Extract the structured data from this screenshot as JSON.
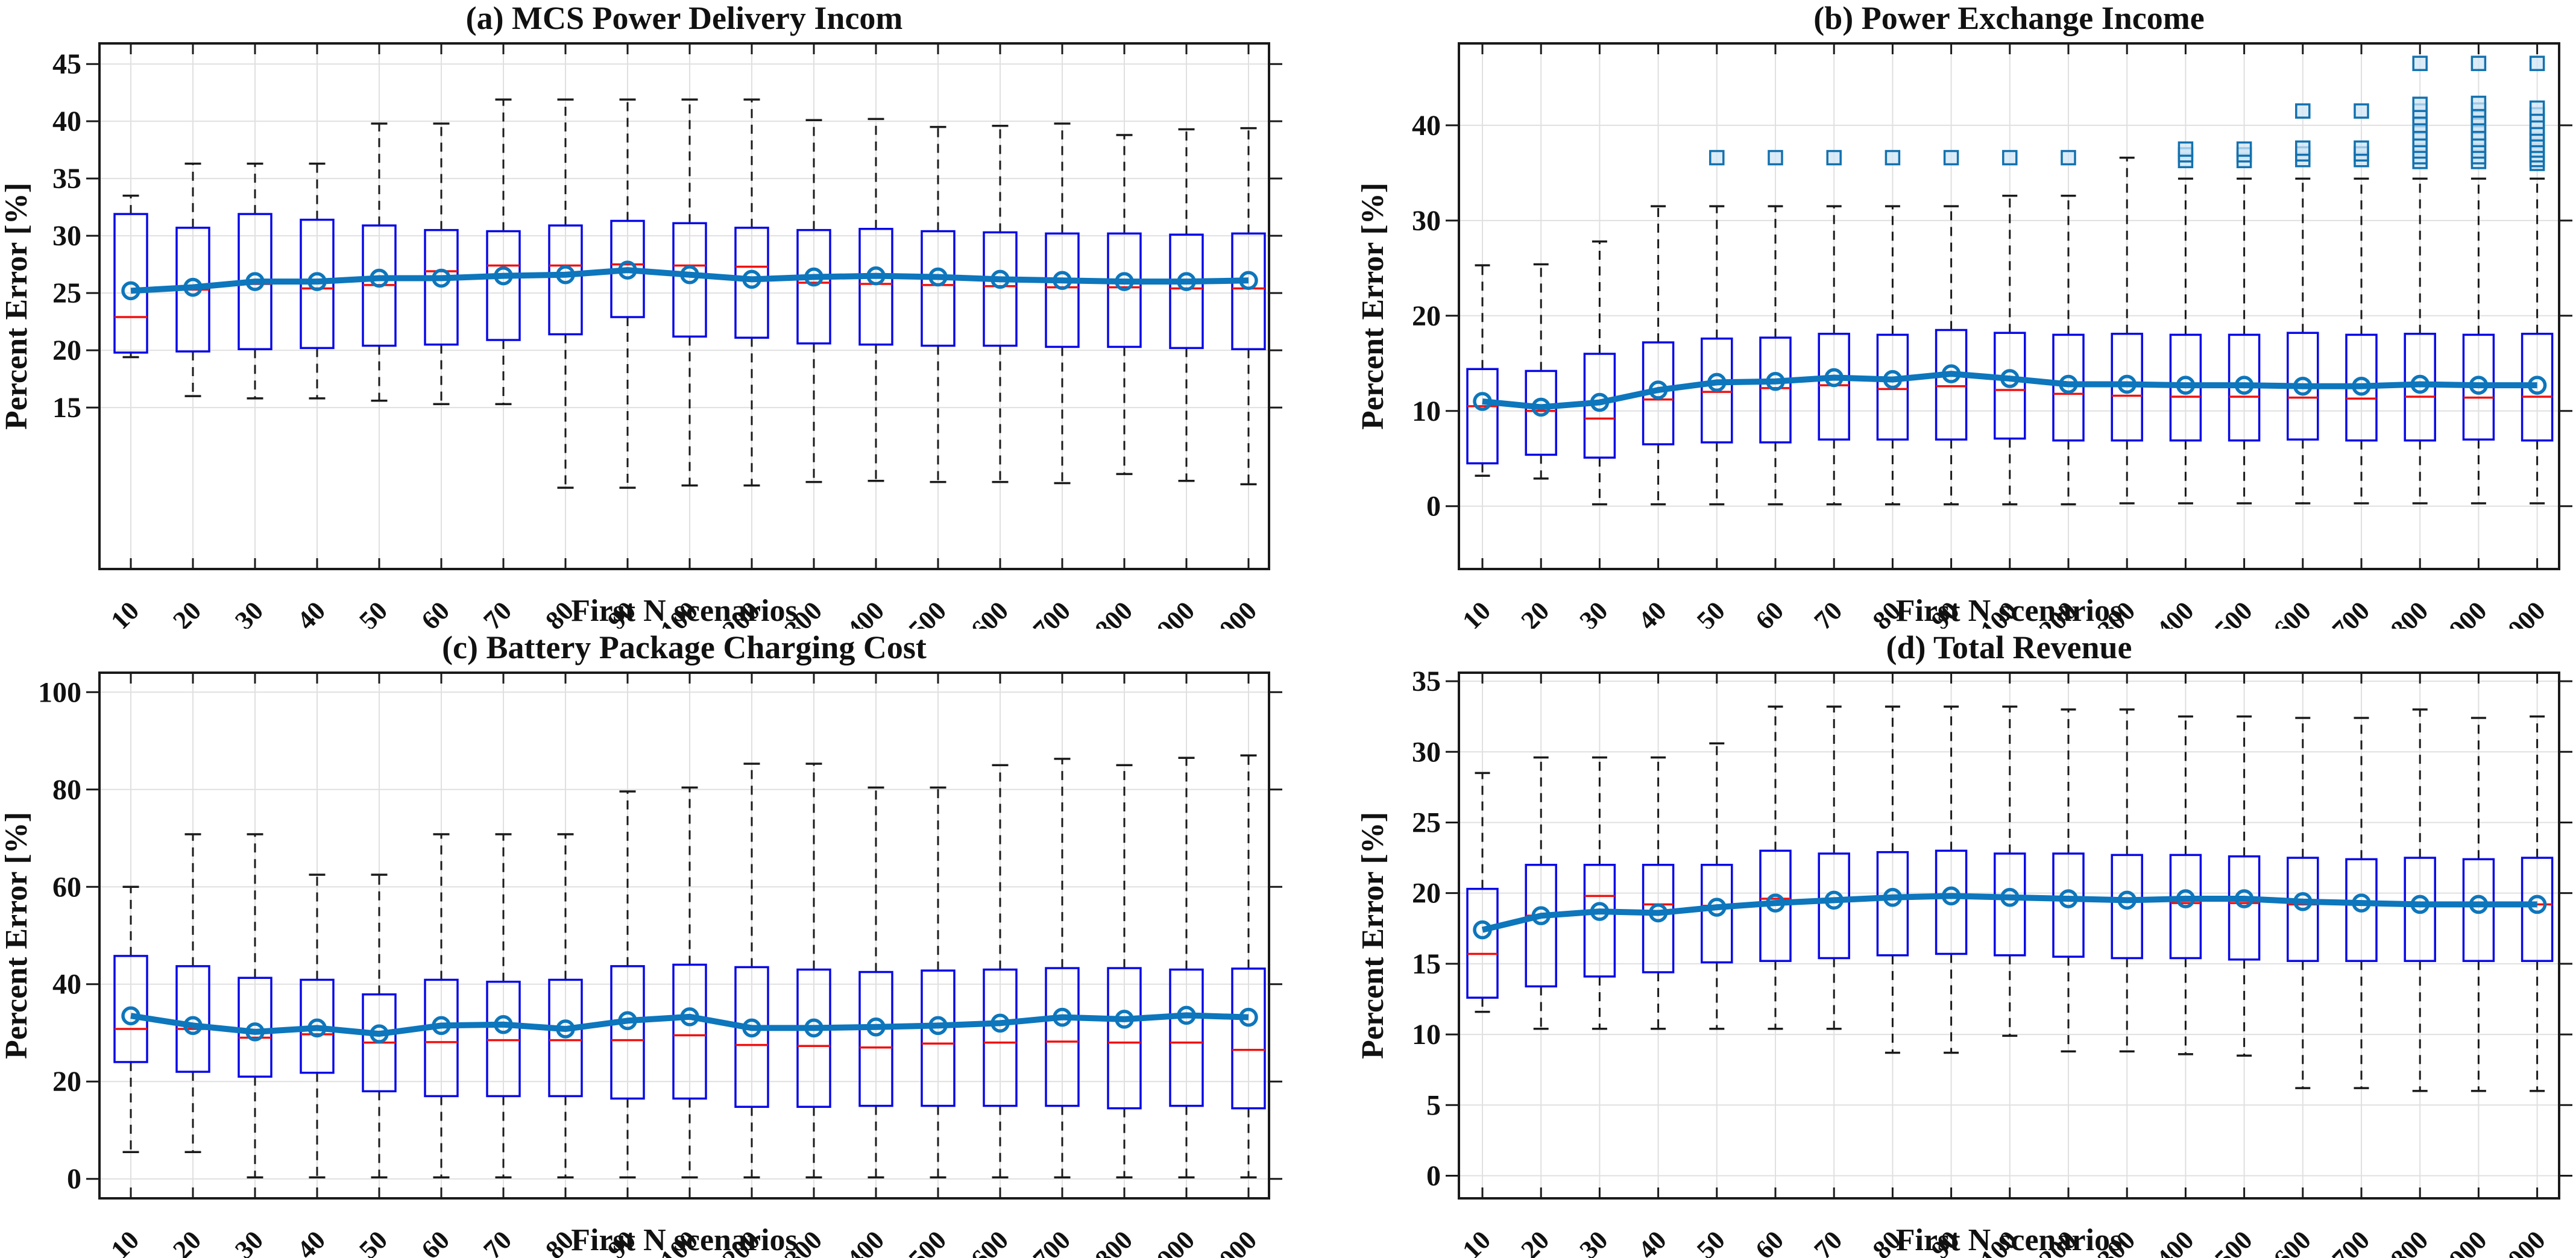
{
  "figure": {
    "xlabel": "First N scenarios",
    "ylabel": "Percent Error [%]",
    "categories": [
      "10",
      "20",
      "30",
      "40",
      "50",
      "60",
      "70",
      "80",
      "90",
      "100",
      "200",
      "300",
      "400",
      "500",
      "600",
      "700",
      "800",
      "900",
      "1000"
    ]
  },
  "colors": {
    "box_edge": "#0808e8",
    "median": "#f01010",
    "whisker": "#1a1a1a",
    "cap": "#1a1a1a",
    "mean_line": "#0d76bc",
    "mean_marker_edge": "#0d76bc",
    "outlier_edge": "#1371ae",
    "outlier_fill": "#cfe6f5",
    "grid": "#e0e0e0",
    "axis": "#1a1a1a",
    "background": "#ffffff",
    "text": "#111111"
  },
  "chart_data": [
    {
      "type": "boxplot",
      "panel": "a",
      "title": "(a) MCS Power Delivery Incom",
      "xlabel": "First N scenarios",
      "ylabel": "Percent Error [%]",
      "categories": [
        "10",
        "20",
        "30",
        "40",
        "50",
        "60",
        "70",
        "80",
        "90",
        "100",
        "200",
        "300",
        "400",
        "500",
        "600",
        "700",
        "800",
        "900",
        "1000"
      ],
      "ylim": [
        0.9,
        46.8
      ],
      "yticks": [
        15,
        20,
        25,
        30,
        35,
        40,
        45
      ],
      "grid": true,
      "boxes": {
        "lo": [
          19.4,
          16.0,
          15.8,
          15.8,
          15.6,
          15.3,
          15.3,
          8.0,
          8.0,
          8.2,
          8.2,
          8.5,
          8.6,
          8.5,
          8.5,
          8.4,
          9.2,
          8.6,
          8.3
        ],
        "q1": [
          19.8,
          19.9,
          20.1,
          20.2,
          20.4,
          20.5,
          20.9,
          21.4,
          22.9,
          21.2,
          21.1,
          20.6,
          20.5,
          20.4,
          20.4,
          20.3,
          20.3,
          20.2,
          20.1
        ],
        "med": [
          22.9,
          25.3,
          25.8,
          25.4,
          25.7,
          26.9,
          27.4,
          27.4,
          27.5,
          27.4,
          27.3,
          25.9,
          25.8,
          25.7,
          25.6,
          25.5,
          25.5,
          25.4,
          25.4
        ],
        "q3": [
          31.9,
          30.7,
          31.9,
          31.4,
          30.9,
          30.5,
          30.4,
          30.9,
          31.3,
          31.1,
          30.7,
          30.5,
          30.6,
          30.4,
          30.3,
          30.2,
          30.2,
          30.1,
          30.2
        ],
        "hi": [
          33.5,
          36.3,
          36.3,
          36.3,
          39.8,
          39.8,
          41.9,
          41.9,
          41.9,
          41.9,
          41.9,
          40.1,
          40.2,
          39.5,
          39.6,
          39.8,
          38.8,
          39.3,
          39.4
        ],
        "mean": [
          25.2,
          25.5,
          26.0,
          26.0,
          26.3,
          26.3,
          26.5,
          26.6,
          27.0,
          26.6,
          26.2,
          26.4,
          26.5,
          26.4,
          26.2,
          26.1,
          26.0,
          26.0,
          26.1
        ]
      },
      "outliers": {}
    },
    {
      "type": "boxplot",
      "panel": "b",
      "title": "(b) Power Exchange Income",
      "xlabel": "First N scenarios",
      "ylabel": "Percent Error [%]",
      "categories": [
        "10",
        "20",
        "30",
        "40",
        "50",
        "60",
        "70",
        "80",
        "90",
        "100",
        "200",
        "300",
        "400",
        "500",
        "600",
        "700",
        "800",
        "900",
        "1000"
      ],
      "ylim": [
        -6.6,
        48.6
      ],
      "yticks": [
        0,
        10,
        20,
        30,
        40
      ],
      "grid": true,
      "boxes": {
        "lo": [
          3.2,
          2.9,
          0.2,
          0.2,
          0.2,
          0.2,
          0.2,
          0.2,
          0.2,
          0.2,
          0.2,
          0.3,
          0.3,
          0.3,
          0.3,
          0.3,
          0.3,
          0.3,
          0.3
        ],
        "q1": [
          4.5,
          5.4,
          5.1,
          6.5,
          6.7,
          6.7,
          7.0,
          7.0,
          7.0,
          7.1,
          6.9,
          6.9,
          6.9,
          6.9,
          7.0,
          6.9,
          6.9,
          7.0,
          6.9
        ],
        "med": [
          10.5,
          10.0,
          9.2,
          11.2,
          12.0,
          12.4,
          12.7,
          12.3,
          12.6,
          12.2,
          11.8,
          11.6,
          11.5,
          11.5,
          11.4,
          11.3,
          11.5,
          11.4,
          11.5
        ],
        "q3": [
          14.4,
          14.2,
          16.0,
          17.2,
          17.6,
          17.7,
          18.1,
          18.0,
          18.5,
          18.2,
          18.0,
          18.1,
          18.0,
          18.0,
          18.2,
          18.0,
          18.1,
          18.0,
          18.1
        ],
        "hi": [
          25.3,
          25.4,
          27.8,
          31.5,
          31.5,
          31.5,
          31.5,
          31.5,
          31.5,
          32.6,
          32.6,
          36.6,
          34.4,
          34.4,
          34.4,
          34.4,
          34.4,
          34.4,
          34.4
        ],
        "mean": [
          11.0,
          10.4,
          10.9,
          12.2,
          13.0,
          13.1,
          13.5,
          13.3,
          13.9,
          13.4,
          12.8,
          12.8,
          12.7,
          12.7,
          12.6,
          12.6,
          12.8,
          12.7,
          12.7
        ]
      },
      "outliers": {
        "50": [
          36.6
        ],
        "60": [
          36.6
        ],
        "70": [
          36.6
        ],
        "80": [
          36.6
        ],
        "90": [
          36.6
        ],
        "100": [
          36.6
        ],
        "200": [
          36.6
        ],
        "400": [
          36.3,
          36.9,
          37.5
        ],
        "500": [
          36.3,
          36.9,
          37.5
        ],
        "600": [
          36.4,
          37.0,
          37.6,
          41.5
        ],
        "700": [
          36.4,
          37.0,
          37.6,
          41.5
        ],
        "800": [
          36.2,
          36.7,
          37.3,
          37.9,
          38.5,
          39.2,
          40.0,
          40.8,
          41.5,
          42.2,
          46.5
        ],
        "900": [
          36.2,
          36.7,
          37.3,
          37.9,
          38.5,
          39.2,
          40.0,
          40.8,
          41.6,
          42.3,
          46.5
        ],
        "1000": [
          36.0,
          36.4,
          36.9,
          37.4,
          37.9,
          38.5,
          39.1,
          39.7,
          40.4,
          41.1,
          41.8,
          46.5
        ]
      }
    },
    {
      "type": "boxplot",
      "panel": "c",
      "title": "(c) Battery Package Charging Cost",
      "xlabel": "First N scenarios",
      "ylabel": "Percent Error [%]",
      "categories": [
        "10",
        "20",
        "30",
        "40",
        "50",
        "60",
        "70",
        "80",
        "90",
        "100",
        "200",
        "300",
        "400",
        "500",
        "600",
        "700",
        "800",
        "900",
        "1000"
      ],
      "ylim": [
        -4.0,
        104.0
      ],
      "yticks": [
        0,
        20,
        40,
        60,
        80,
        100
      ],
      "grid": true,
      "boxes": {
        "lo": [
          5.5,
          5.5,
          0.3,
          0.3,
          0.3,
          0.3,
          0.3,
          0.3,
          0.3,
          0.3,
          0.3,
          0.3,
          0.3,
          0.3,
          0.3,
          0.3,
          0.3,
          0.3,
          0.3
        ],
        "q1": [
          24.0,
          22.0,
          21.0,
          21.8,
          18.0,
          17.0,
          17.0,
          17.0,
          16.5,
          16.5,
          14.8,
          14.8,
          15.0,
          15.0,
          15.0,
          15.0,
          14.5,
          15.0,
          14.5
        ],
        "med": [
          30.8,
          30.8,
          29.0,
          29.7,
          28.0,
          28.1,
          28.5,
          28.5,
          28.5,
          29.5,
          27.5,
          27.3,
          27.0,
          27.8,
          28.0,
          28.2,
          28.0,
          28.0,
          26.5
        ],
        "q3": [
          45.8,
          43.7,
          41.3,
          40.9,
          37.9,
          40.9,
          40.5,
          40.9,
          43.7,
          44.0,
          43.5,
          43.0,
          42.5,
          42.8,
          43.0,
          43.3,
          43.3,
          43.0,
          43.2
        ],
        "hi": [
          60.0,
          70.8,
          70.8,
          62.5,
          62.5,
          70.8,
          70.8,
          70.8,
          79.6,
          80.4,
          85.3,
          85.3,
          80.4,
          80.4,
          85.0,
          86.3,
          85.0,
          86.5,
          87.0
        ],
        "mean": [
          33.5,
          31.5,
          30.2,
          31.0,
          29.8,
          31.5,
          31.7,
          30.8,
          32.5,
          33.3,
          31.0,
          31.0,
          31.2,
          31.5,
          32.0,
          33.2,
          32.8,
          33.6,
          33.2
        ]
      },
      "outliers": {}
    },
    {
      "type": "boxplot",
      "panel": "d",
      "title": "(d) Total Revenue",
      "xlabel": "First N scenarios",
      "ylabel": "Percent Error [%]",
      "categories": [
        "10",
        "20",
        "30",
        "40",
        "50",
        "60",
        "70",
        "80",
        "90",
        "100",
        "200",
        "300",
        "400",
        "500",
        "600",
        "700",
        "800",
        "900",
        "1000"
      ],
      "ylim": [
        -1.6,
        35.6
      ],
      "yticks": [
        0,
        5,
        10,
        15,
        20,
        25,
        30,
        35
      ],
      "grid": true,
      "boxes": {
        "lo": [
          11.6,
          10.4,
          10.4,
          10.4,
          10.4,
          10.4,
          10.4,
          8.7,
          8.7,
          9.9,
          8.8,
          8.8,
          8.6,
          8.5,
          6.2,
          6.2,
          6.0,
          6.0,
          6.0
        ],
        "q1": [
          12.6,
          13.4,
          14.1,
          14.4,
          15.1,
          15.2,
          15.4,
          15.6,
          15.7,
          15.6,
          15.5,
          15.4,
          15.4,
          15.3,
          15.2,
          15.2,
          15.2,
          15.2,
          15.2
        ],
        "med": [
          15.7,
          18.4,
          19.8,
          19.2,
          19.1,
          19.6,
          19.5,
          19.6,
          19.8,
          19.6,
          19.5,
          19.4,
          19.3,
          19.3,
          19.2,
          19.2,
          19.2,
          19.2,
          19.2
        ],
        "q3": [
          20.3,
          22.0,
          22.0,
          22.0,
          22.0,
          23.0,
          22.8,
          22.9,
          23.0,
          22.8,
          22.8,
          22.7,
          22.7,
          22.6,
          22.5,
          22.4,
          22.5,
          22.4,
          22.5
        ],
        "hi": [
          28.5,
          29.6,
          29.6,
          29.6,
          30.6,
          33.2,
          33.2,
          33.2,
          33.2,
          33.2,
          33.0,
          33.0,
          32.5,
          32.5,
          32.4,
          32.4,
          33.0,
          32.4,
          32.5
        ],
        "mean": [
          17.4,
          18.4,
          18.7,
          18.6,
          19.0,
          19.3,
          19.5,
          19.7,
          19.8,
          19.7,
          19.6,
          19.5,
          19.6,
          19.6,
          19.4,
          19.3,
          19.2,
          19.2,
          19.2
        ]
      },
      "outliers": {}
    }
  ]
}
